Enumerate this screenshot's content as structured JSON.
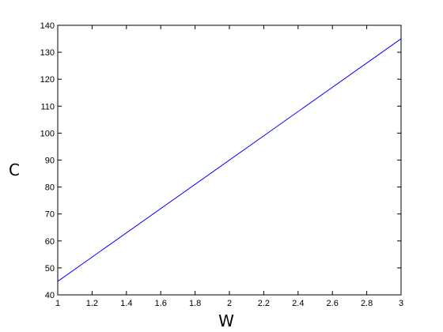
{
  "chart_data": {
    "type": "line",
    "title": "",
    "xlabel": "W",
    "ylabel": "C",
    "xlim": [
      1,
      3
    ],
    "ylim": [
      40,
      140
    ],
    "xticks": [
      1,
      1.2,
      1.4,
      1.6,
      1.8,
      2,
      2.2,
      2.4,
      2.6,
      2.8,
      3
    ],
    "xtick_labels": [
      "1",
      "1.2",
      "1.4",
      "1.6",
      "1.8",
      "2",
      "2.2",
      "2.4",
      "2.6",
      "2.8",
      "3"
    ],
    "yticks": [
      40,
      50,
      60,
      70,
      80,
      90,
      100,
      110,
      120,
      130,
      140
    ],
    "ytick_labels": [
      "40",
      "50",
      "60",
      "70",
      "80",
      "90",
      "100",
      "110",
      "120",
      "130",
      "140"
    ],
    "grid": false,
    "series": [
      {
        "color": "#0000ff",
        "x": [
          1,
          3
        ],
        "y": [
          45,
          135
        ]
      }
    ]
  }
}
